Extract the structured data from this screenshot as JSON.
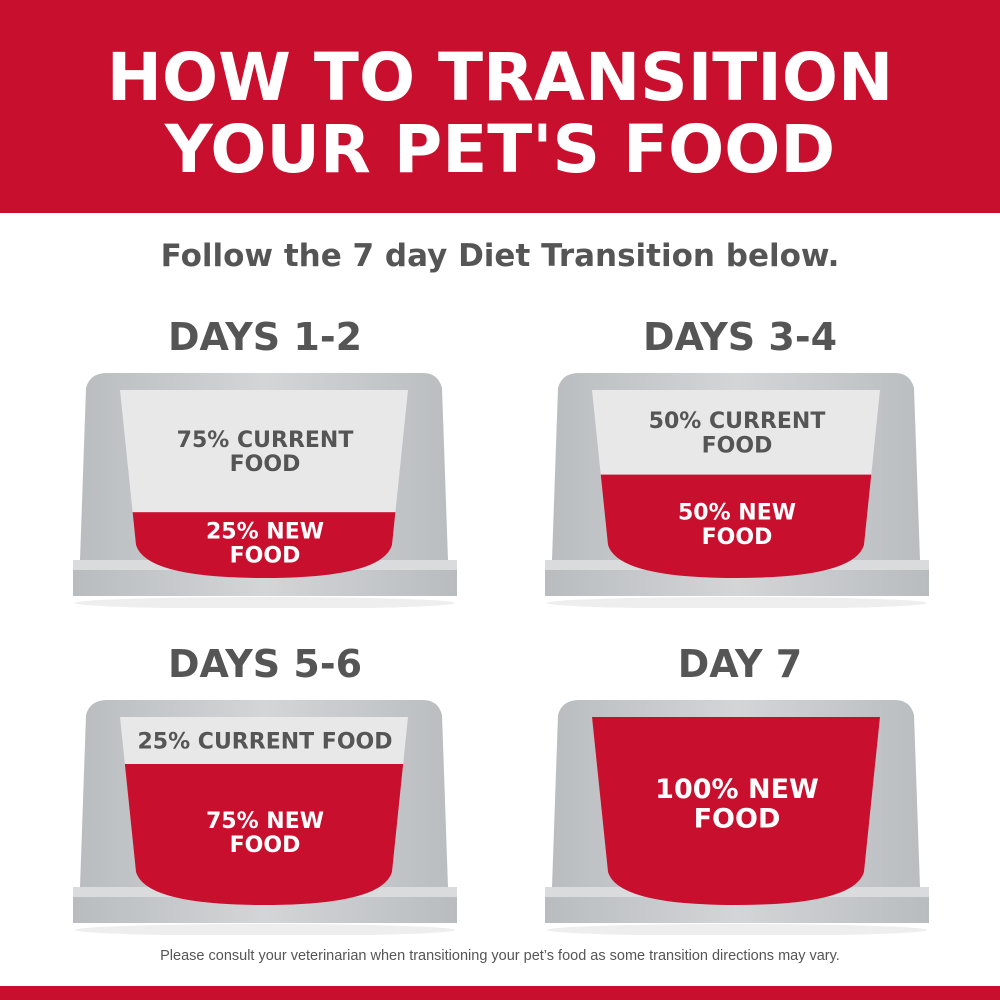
{
  "header": {
    "title_line1": "HOW TO TRANSITION",
    "title_line2": "YOUR PET'S FOOD",
    "subtitle": "Follow the 7 day Diet Transition below."
  },
  "colors": {
    "brand_red": "#C8102E",
    "text_gray": "#555555",
    "bowl_gray": "#C4C7CA",
    "bowl_inner": "#E8E8E9"
  },
  "steps": [
    {
      "title": "DAYS 1-2",
      "current_pct": 75,
      "new_pct": 25,
      "current_lines": [
        "75% CURRENT",
        "FOOD"
      ],
      "new_lines": [
        "25% NEW",
        "FOOD"
      ]
    },
    {
      "title": "DAYS 3-4",
      "current_pct": 50,
      "new_pct": 50,
      "current_lines": [
        "50% CURRENT",
        "FOOD"
      ],
      "new_lines": [
        "50% NEW",
        "FOOD"
      ]
    },
    {
      "title": "DAYS 5-6",
      "current_pct": 25,
      "new_pct": 75,
      "current_lines": [
        "25% CURRENT FOOD"
      ],
      "new_lines": [
        "75% NEW",
        "FOOD"
      ]
    },
    {
      "title": "DAY 7",
      "current_pct": 0,
      "new_pct": 100,
      "current_lines": [],
      "new_lines": [
        "100% NEW",
        "FOOD"
      ]
    }
  ],
  "footer": {
    "disclaimer": "Please consult your veterinarian when transitioning your pet’s food as some transition directions may vary."
  }
}
